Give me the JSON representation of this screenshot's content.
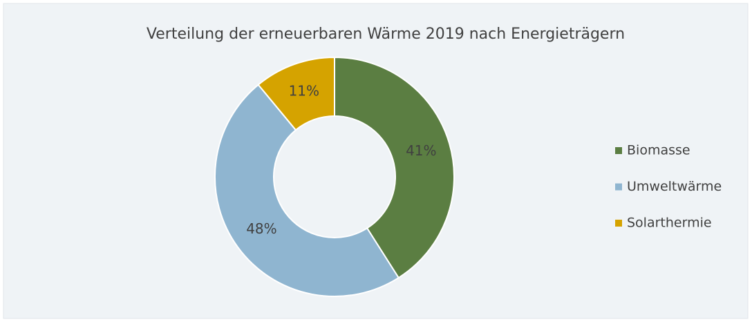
{
  "chart_data": {
    "type": "donut",
    "title": "Verteilung der erneuerbaren Wärme 2019 nach Energieträgern",
    "categories": [
      "Biomasse",
      "Umweltwärme",
      "Solarthermie"
    ],
    "values": [
      41,
      48,
      11
    ],
    "value_labels": [
      "41%",
      "48%",
      "11%"
    ],
    "colors": [
      "#5b7e42",
      "#8fb5d0",
      "#d5a300"
    ],
    "legend": "right"
  }
}
